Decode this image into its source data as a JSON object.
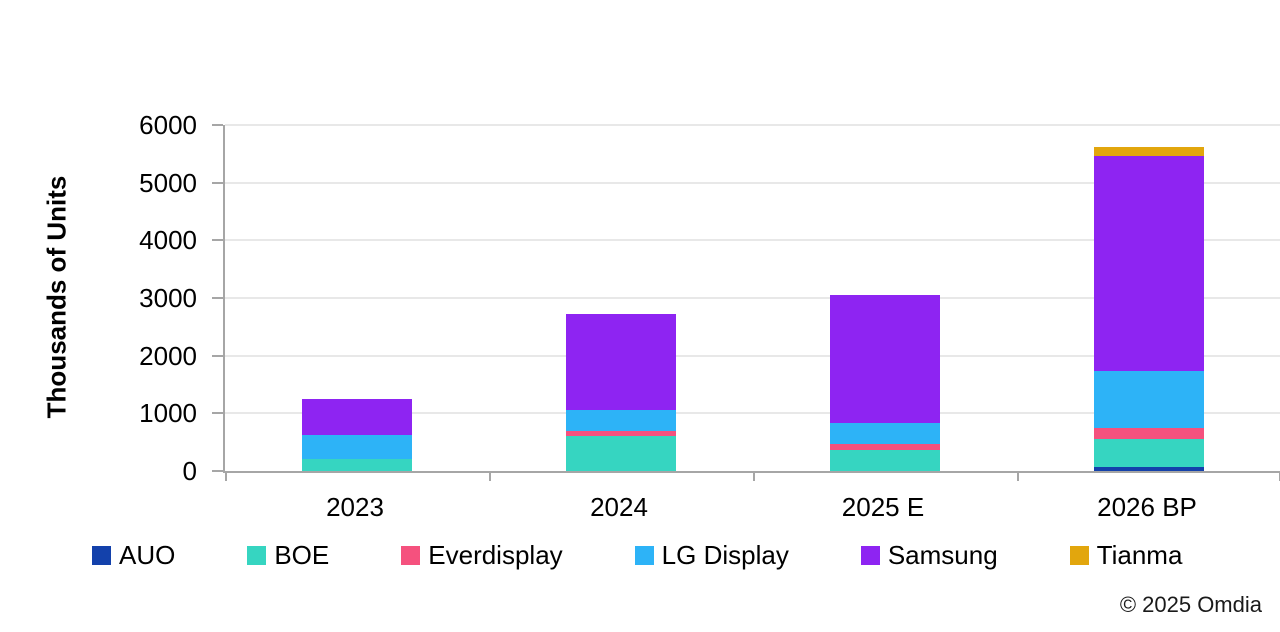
{
  "chart_data": {
    "type": "bar",
    "stacked": true,
    "title": "",
    "ylabel": "Thousands of Units",
    "xlabel": "",
    "ylim": [
      0,
      6000
    ],
    "ytick_step": 1000,
    "grid": true,
    "legend_position": "bottom",
    "categories": [
      "2023",
      "2024",
      "2025 E",
      "2026 BP"
    ],
    "series": [
      {
        "name": "AUO",
        "color": "#1341ab",
        "values": [
          0,
          0,
          0,
          70
        ]
      },
      {
        "name": "BOE",
        "color": "#36d5c1",
        "values": [
          200,
          600,
          370,
          480
        ]
      },
      {
        "name": "Everdisplay",
        "color": "#f5517e",
        "values": [
          0,
          100,
          100,
          190
        ]
      },
      {
        "name": "LG Display",
        "color": "#2db3f7",
        "values": [
          420,
          350,
          360,
          990
        ]
      },
      {
        "name": "Samsung",
        "color": "#8e24f2",
        "values": [
          630,
          1680,
          2230,
          3740
        ]
      },
      {
        "name": "Tianma",
        "color": "#e2a60d",
        "values": [
          0,
          0,
          0,
          150
        ]
      }
    ],
    "totals": [
      1250,
      2730,
      3060,
      5620
    ]
  },
  "footer": {
    "copyright": "© 2025 Omdia"
  }
}
